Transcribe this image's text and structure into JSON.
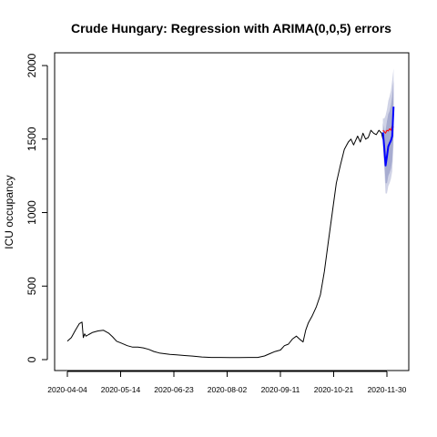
{
  "chart_data": {
    "type": "line",
    "title": "Crude Hungary: Regression with ARIMA(0,0,5) errors",
    "xlabel": "",
    "ylabel": "ICU occupancy",
    "ylim": [
      0,
      2000
    ],
    "y_ticks": [
      0,
      500,
      1000,
      1500,
      2000
    ],
    "x_tick_labels": [
      "2020-04-04",
      "2020-05-14",
      "2020-06-23",
      "2020-08-02",
      "2020-09-11",
      "2020-10-21",
      "2020-11-30"
    ],
    "grid": false,
    "legend": "none",
    "colors": {
      "observed": "#000000",
      "forecast": "#0000ff",
      "actual_after": "#ff0000",
      "band_outer": "#d0d3e6",
      "band_inner": "#a7acd0"
    },
    "series": [
      {
        "role": "observed",
        "x": [
          "2020-04-04",
          "2020-04-07",
          "2020-04-10",
          "2020-04-13",
          "2020-04-15",
          "2020-04-16",
          "2020-04-17",
          "2020-04-18",
          "2020-04-20",
          "2020-04-23",
          "2020-04-27",
          "2020-05-01",
          "2020-05-05",
          "2020-05-08",
          "2020-05-11",
          "2020-05-15",
          "2020-05-19",
          "2020-05-23",
          "2020-05-27",
          "2020-05-31",
          "2020-06-04",
          "2020-06-08",
          "2020-06-12",
          "2020-06-16",
          "2020-06-20",
          "2020-06-25",
          "2020-07-01",
          "2020-07-07",
          "2020-07-14",
          "2020-07-21",
          "2020-07-28",
          "2020-08-04",
          "2020-08-11",
          "2020-08-18",
          "2020-08-25",
          "2020-08-30",
          "2020-09-03",
          "2020-09-07",
          "2020-09-11",
          "2020-09-14",
          "2020-09-17",
          "2020-09-20",
          "2020-09-23",
          "2020-09-26",
          "2020-09-28",
          "2020-09-30",
          "2020-10-02",
          "2020-10-05",
          "2020-10-08",
          "2020-10-11",
          "2020-10-14",
          "2020-10-17",
          "2020-10-20",
          "2020-10-23",
          "2020-10-26",
          "2020-10-29",
          "2020-11-01",
          "2020-11-03",
          "2020-11-05",
          "2020-11-08",
          "2020-11-10",
          "2020-11-12",
          "2020-11-14",
          "2020-11-16",
          "2020-11-18",
          "2020-11-20",
          "2020-11-22",
          "2020-11-24",
          "2020-11-26",
          "2020-11-27"
        ],
        "y": [
          125,
          150,
          200,
          245,
          255,
          150,
          175,
          160,
          170,
          185,
          195,
          200,
          180,
          155,
          125,
          110,
          95,
          85,
          85,
          80,
          70,
          55,
          45,
          40,
          35,
          32,
          28,
          24,
          18,
          15,
          15,
          14,
          14,
          15,
          15,
          25,
          40,
          55,
          65,
          95,
          105,
          140,
          160,
          135,
          120,
          200,
          250,
          300,
          360,
          440,
          600,
          800,
          1000,
          1200,
          1320,
          1430,
          1480,
          1500,
          1460,
          1520,
          1480,
          1540,
          1500,
          1510,
          1560,
          1540,
          1530,
          1560,
          1540,
          1500
        ]
      },
      {
        "role": "forecast",
        "x": [
          "2020-11-27",
          "2020-11-28",
          "2020-11-29",
          "2020-11-30",
          "2020-12-01",
          "2020-12-02",
          "2020-12-03",
          "2020-12-04",
          "2020-12-05"
        ],
        "y": [
          1545,
          1440,
          1320,
          1380,
          1450,
          1470,
          1490,
          1520,
          1720
        ]
      },
      {
        "role": "actual_after",
        "x": [
          "2020-11-27",
          "2020-11-28",
          "2020-11-29",
          "2020-11-30",
          "2020-12-01",
          "2020-12-02",
          "2020-12-03",
          "2020-12-04",
          "2020-12-05"
        ],
        "y": [
          1560,
          1550,
          1540,
          1560,
          1555,
          1570,
          1560,
          1590,
          1580
        ]
      }
    ],
    "intervals": {
      "x": [
        "2020-11-27",
        "2020-11-28",
        "2020-11-29",
        "2020-11-30",
        "2020-12-01",
        "2020-12-02",
        "2020-12-03",
        "2020-12-04",
        "2020-12-05"
      ],
      "lower95": [
        1420,
        1300,
        1130,
        1130,
        1180,
        1200,
        1230,
        1280,
        1460
      ],
      "upper95": [
        1640,
        1640,
        1660,
        1700,
        1760,
        1790,
        1830,
        1900,
        1980
      ],
      "lower80": [
        1470,
        1360,
        1200,
        1200,
        1250,
        1270,
        1300,
        1350,
        1540
      ],
      "upper80": [
        1610,
        1560,
        1560,
        1620,
        1670,
        1690,
        1730,
        1790,
        1900
      ]
    }
  }
}
